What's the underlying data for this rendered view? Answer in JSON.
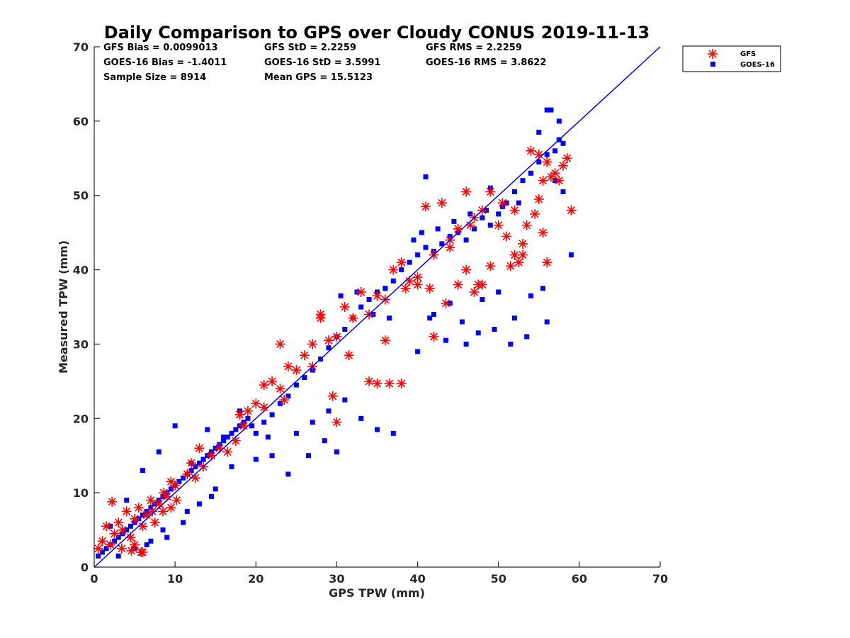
{
  "chart_data": {
    "type": "scatter",
    "title": "Daily Comparison to GPS over Cloudy CONUS 2019-11-13",
    "xlabel": "GPS TPW (mm)",
    "ylabel": "Measured TPW (mm)",
    "xlim": [
      0,
      70
    ],
    "ylim": [
      0,
      70
    ],
    "xticks": [
      "0",
      "10",
      "20",
      "30",
      "40",
      "50",
      "60",
      "70"
    ],
    "yticks": [
      "0",
      "10",
      "20",
      "30",
      "40",
      "50",
      "60",
      "70"
    ],
    "grid": false,
    "legend_position": "top-right outside",
    "colors": {
      "gfs": "#ff0000",
      "goes": "#0000ff",
      "line": "#0000ff"
    },
    "stats": {
      "gfs_bias": "GFS Bias = 0.0099013",
      "gfs_std": "GFS StD = 2.2259",
      "gfs_rms": "GFS RMS = 2.2259",
      "goes_bias": "GOES-16 Bias = -1.4011",
      "goes_std": "GOES-16 StD = 3.5991",
      "goes_rms": "GOES-16 RMS = 3.8622",
      "sample_size": "Sample Size = 8914",
      "mean_gps": "Mean GPS = 15.5123"
    },
    "reference_line": {
      "x": [
        0,
        70
      ],
      "y": [
        0,
        70
      ]
    },
    "series": [
      {
        "name": "GFS",
        "marker": "asterisk",
        "x": [
          0.5,
          1.0,
          1.5,
          2.0,
          2.5,
          3.0,
          3.5,
          4.0,
          4.5,
          5.0,
          5.5,
          6.0,
          6.5,
          7.0,
          7.5,
          8.0,
          8.5,
          9.0,
          9.5,
          10.0,
          2.2,
          3.4,
          4.6,
          5.8,
          7.2,
          8.6,
          10.2,
          11.5,
          12.5,
          13.5,
          14.5,
          15.5,
          16.5,
          17.5,
          18.0,
          18.5,
          19.0,
          20.0,
          21.0,
          22.0,
          23.0,
          24.0,
          25.0,
          26.0,
          27.0,
          28.0,
          29.0,
          30.0,
          31.0,
          32.0,
          33.0,
          34.0,
          35.0,
          36.0,
          37.0,
          38.0,
          39.0,
          40.0,
          41.0,
          42.0,
          43.0,
          44.0,
          45.0,
          46.0,
          47.0,
          48.0,
          49.0,
          50.0,
          51.0,
          52.0,
          53.0,
          54.0,
          55.0,
          56.0,
          57.0,
          58.0,
          23.0,
          28.0,
          29.5,
          34.0,
          35.0,
          36.5,
          38.0,
          42.0,
          45.0,
          46.0,
          47.0,
          48.0,
          49.0,
          51.5,
          52.5,
          53.0,
          55.0,
          55.5,
          56.0,
          57.5,
          58.5,
          59.0,
          30.0,
          23.5,
          21.0,
          12.0,
          13.0,
          6.0,
          5.0,
          18.0,
          27.0,
          31.5,
          36.0,
          40.0,
          41.5,
          43.5,
          44.0,
          46.5,
          50.5,
          54.5,
          55.5,
          56.5,
          53.5,
          52.0,
          38.5,
          47.5,
          9.5
        ],
        "y": [
          2.5,
          3.5,
          5.5,
          3.0,
          4.5,
          6.0,
          5.0,
          7.5,
          4.0,
          6.5,
          8.0,
          5.5,
          7.0,
          9.0,
          6.0,
          8.5,
          7.5,
          9.5,
          8.0,
          11.0,
          8.8,
          2.5,
          2.2,
          2.0,
          7.5,
          10.0,
          9.0,
          12.5,
          12.0,
          13.5,
          15.0,
          16.0,
          15.5,
          17.0,
          20.5,
          19.0,
          21.0,
          22.0,
          21.5,
          25.0,
          24.0,
          27.0,
          26.5,
          28.5,
          27.0,
          33.5,
          30.5,
          31.0,
          35.0,
          33.5,
          37.0,
          34.0,
          36.5,
          36.0,
          40.0,
          41.0,
          38.5,
          38.0,
          48.5,
          42.0,
          49.0,
          43.0,
          45.5,
          50.5,
          47.0,
          48.0,
          50.5,
          46.0,
          44.5,
          48.0,
          43.5,
          56.0,
          55.5,
          54.5,
          53.0,
          54.0,
          30.0,
          34.0,
          23.0,
          25.0,
          24.7,
          24.7,
          24.7,
          31.0,
          38.0,
          40.0,
          37.0,
          38.0,
          40.5,
          40.5,
          41.0,
          42.0,
          49.5,
          45.0,
          41.0,
          52.0,
          55.0,
          48.0,
          19.5,
          22.5,
          24.5,
          14.0,
          16.0,
          2.0,
          3.0,
          20.5,
          30.0,
          28.5,
          30.5,
          39.0,
          37.5,
          35.5,
          44.0,
          46.0,
          49.0,
          47.5,
          52.0,
          52.5,
          46.0,
          42.0,
          37.5,
          38.0,
          11.5
        ]
      },
      {
        "name": "GOES-16",
        "marker": "square",
        "x": [
          0.5,
          1.0,
          1.5,
          2.0,
          2.5,
          3.0,
          3.5,
          4.0,
          4.5,
          5.0,
          5.5,
          6.0,
          6.5,
          7.0,
          7.5,
          8.0,
          8.5,
          9.0,
          9.5,
          10.0,
          10.5,
          11.0,
          11.5,
          12.0,
          12.5,
          13.0,
          13.5,
          14.0,
          14.5,
          15.0,
          15.5,
          16.0,
          16.5,
          17.0,
          17.5,
          18.0,
          18.5,
          19.0,
          19.5,
          20.0,
          21.0,
          22.0,
          23.0,
          24.0,
          25.0,
          26.0,
          27.0,
          28.0,
          29.0,
          30.0,
          31.0,
          32.0,
          33.0,
          34.0,
          35.0,
          36.0,
          37.0,
          38.0,
          39.0,
          40.0,
          41.0,
          42.0,
          43.0,
          44.0,
          45.0,
          46.0,
          47.0,
          48.0,
          49.0,
          50.0,
          51.0,
          52.0,
          53.0,
          54.0,
          55.0,
          56.0,
          57.0,
          58.0,
          2.0,
          4.0,
          6.0,
          8.0,
          10.0,
          12.0,
          14.0,
          16.0,
          18.0,
          9.0,
          11.0,
          13.0,
          15.0,
          17.0,
          5.0,
          7.0,
          3.0,
          25.0,
          27.0,
          29.0,
          31.0,
          33.0,
          35.0,
          37.0,
          30.5,
          32.5,
          34.5,
          36.5,
          42.0,
          44.0,
          45.5,
          47.5,
          49.5,
          51.5,
          53.5,
          55.5,
          57.0,
          58.0,
          59.0,
          40.0,
          41.5,
          43.5,
          46.0,
          48.0,
          50.0,
          52.0,
          54.0,
          56.0,
          57.5,
          55.0,
          30.0,
          28.5,
          26.5,
          24.0,
          22.0,
          20.0,
          21.5,
          40.5,
          42.5,
          44.5,
          46.5,
          48.5,
          41.0,
          39.5,
          50.5,
          52.5,
          56.5,
          57.5,
          49.0,
          36.0,
          56.0,
          6.5,
          8.5,
          11.5,
          14.5
        ],
        "y": [
          1.5,
          2.0,
          2.5,
          3.0,
          3.5,
          4.0,
          4.5,
          5.0,
          5.5,
          6.0,
          6.5,
          7.0,
          7.5,
          8.0,
          8.5,
          9.0,
          9.5,
          10.0,
          10.5,
          11.0,
          11.5,
          12.0,
          12.5,
          13.0,
          13.5,
          14.0,
          14.5,
          15.0,
          15.5,
          16.0,
          16.5,
          17.0,
          17.5,
          18.0,
          18.5,
          19.0,
          19.5,
          20.0,
          19.0,
          18.0,
          19.5,
          20.5,
          22.0,
          23.0,
          24.5,
          25.5,
          26.5,
          28.0,
          29.5,
          31.0,
          32.0,
          33.5,
          35.0,
          36.0,
          37.0,
          37.5,
          38.5,
          40.0,
          41.0,
          42.0,
          43.0,
          42.5,
          43.5,
          44.5,
          45.0,
          44.0,
          45.5,
          47.0,
          46.0,
          47.5,
          49.0,
          50.5,
          52.0,
          53.0,
          54.5,
          55.5,
          56.0,
          57.0,
          5.5,
          9.0,
          13.0,
          15.5,
          19.0,
          14.0,
          18.5,
          17.5,
          21.0,
          4.0,
          6.0,
          8.5,
          10.5,
          13.5,
          2.5,
          3.5,
          1.5,
          18.0,
          19.5,
          21.0,
          22.5,
          20.0,
          18.5,
          18.0,
          36.5,
          37.0,
          34.0,
          33.5,
          34.0,
          35.5,
          33.0,
          31.5,
          32.0,
          30.0,
          31.0,
          37.5,
          52.0,
          50.5,
          42.0,
          29.0,
          33.5,
          30.5,
          30.0,
          36.0,
          37.0,
          33.5,
          36.5,
          33.0,
          60.0,
          58.5,
          15.5,
          17.0,
          15.0,
          12.5,
          15.0,
          14.5,
          17.5,
          45.0,
          45.5,
          46.5,
          47.5,
          48.0,
          52.5,
          44.0,
          48.5,
          49.0,
          61.5,
          57.5,
          51.0,
          37.5,
          61.5,
          3.0,
          5.0,
          7.5,
          9.5
        ]
      }
    ]
  }
}
